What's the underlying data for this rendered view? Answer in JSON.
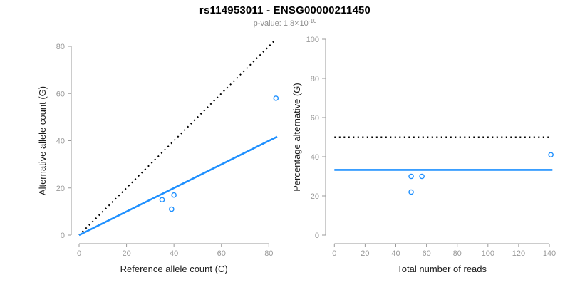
{
  "header": {
    "title": "rs114953011 - ENSG00000211450",
    "pvalue_prefix": "p-value: 1.8×",
    "pvalue_base": "10",
    "pvalue_exponent": "-10"
  },
  "colors": {
    "accent_blue": "#1E90FF",
    "dotted_black": "#000000",
    "axis_gray": "#9A9A9A",
    "tick_label_gray": "#999999",
    "axis_title_color": "#1A1A1A",
    "subtitle_gray": "#8C8C8C"
  },
  "chart_data": [
    {
      "type": "scatter",
      "panel": "allele-counts",
      "xlabel": "Reference allele count (C)",
      "ylabel": "Alternative allele count (G)",
      "xlim": [
        0,
        83
      ],
      "ylim": [
        0,
        83
      ],
      "xticks": [
        0,
        20,
        40,
        60,
        80
      ],
      "yticks": [
        0,
        20,
        40,
        60,
        80
      ],
      "grid": false,
      "legend": null,
      "points": [
        {
          "x": 35,
          "y": 15
        },
        {
          "x": 40,
          "y": 17
        },
        {
          "x": 39,
          "y": 11
        },
        {
          "x": 83,
          "y": 58
        }
      ],
      "lines": [
        {
          "name": "identity-line",
          "style": "dotted",
          "color_key": "dotted_black",
          "width": 2,
          "x1": 0,
          "y1": 0,
          "x2": 83,
          "y2": 83
        },
        {
          "name": "fit-line",
          "style": "solid",
          "color_key": "accent_blue",
          "width": 2.6,
          "x1": 0,
          "y1": 0,
          "x2": 83.5,
          "y2": 41.7
        }
      ]
    },
    {
      "type": "scatter",
      "panel": "percentage-alternative",
      "xlabel": "Total number of reads",
      "ylabel": "Percentage alternative (G)",
      "xlim": [
        0,
        142
      ],
      "ylim": [
        0,
        100
      ],
      "xticks": [
        0,
        20,
        40,
        60,
        80,
        100,
        120,
        140
      ],
      "yticks": [
        0,
        20,
        40,
        60,
        80,
        100
      ],
      "grid": false,
      "legend": null,
      "points": [
        {
          "x": 50,
          "y": 30
        },
        {
          "x": 57,
          "y": 30
        },
        {
          "x": 50,
          "y": 22
        },
        {
          "x": 141,
          "y": 41
        }
      ],
      "lines": [
        {
          "name": "expected-50-percent-line",
          "style": "dotted",
          "color_key": "dotted_black",
          "width": 2,
          "x1": 0,
          "y1": 50,
          "x2": 139.5,
          "y2": 50
        },
        {
          "name": "observed-percentage-line",
          "style": "solid",
          "color_key": "accent_blue",
          "width": 2.6,
          "x1": 0,
          "y1": 33.3,
          "x2": 142,
          "y2": 33.3
        }
      ]
    }
  ]
}
